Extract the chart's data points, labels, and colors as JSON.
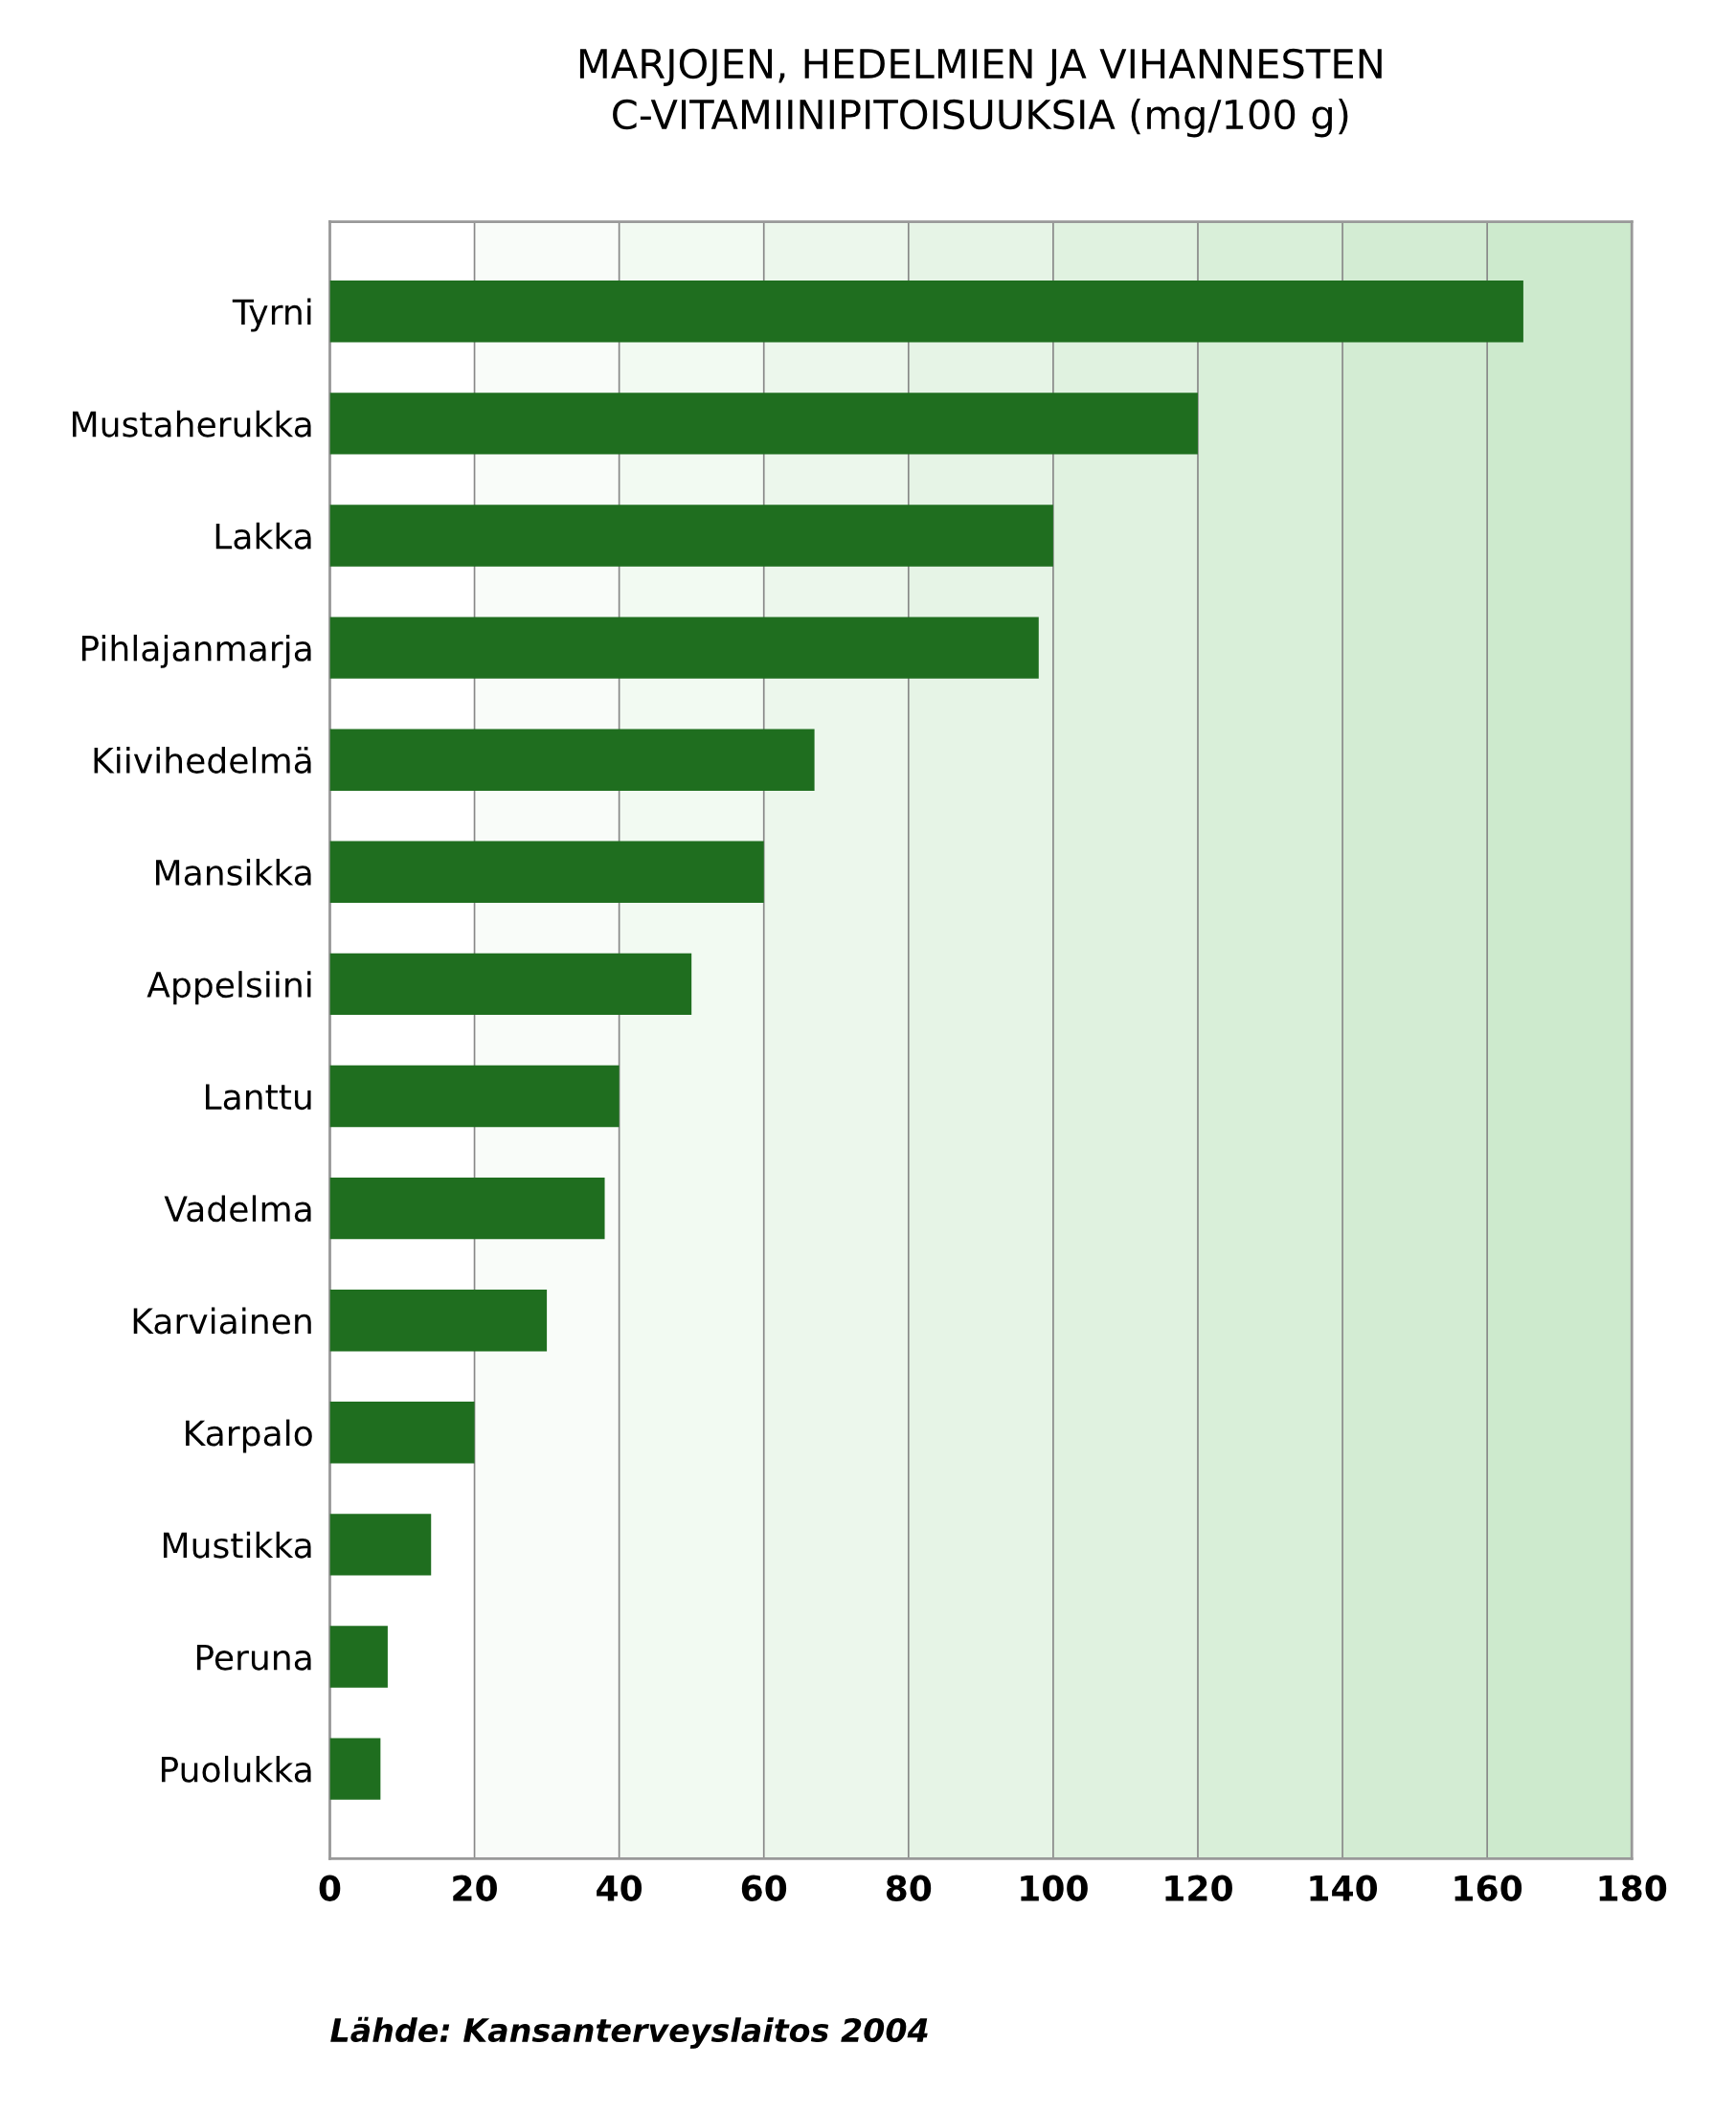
{
  "chart_data": {
    "type": "bar",
    "orientation": "horizontal",
    "title": "MARJOJEN, HEDELMIEN JA VIHANNESTEN\nC-VITAMIINIPITOISUUKSIA (mg/100 g)",
    "categories": [
      "Tyrni",
      "Mustaherukka",
      "Lakka",
      "Pihlajanmarja",
      "Kiivihedelmä",
      "Mansikka",
      "Appelsiini",
      "Lanttu",
      "Vadelma",
      "Karviainen",
      "Karpalo",
      "Mustikka",
      "Peruna",
      "Puolukka"
    ],
    "values": [
      165,
      120,
      100,
      98,
      67,
      60,
      50,
      40,
      38,
      30,
      20,
      14,
      8,
      7
    ],
    "color": "#1f6e1f",
    "xlim": [
      0,
      180
    ],
    "xticks": [
      0,
      20,
      40,
      60,
      80,
      100,
      120,
      140,
      160,
      180
    ],
    "grid": "x",
    "annotations": [
      "Lähde: Kansanterveyslaitos 2004"
    ]
  }
}
